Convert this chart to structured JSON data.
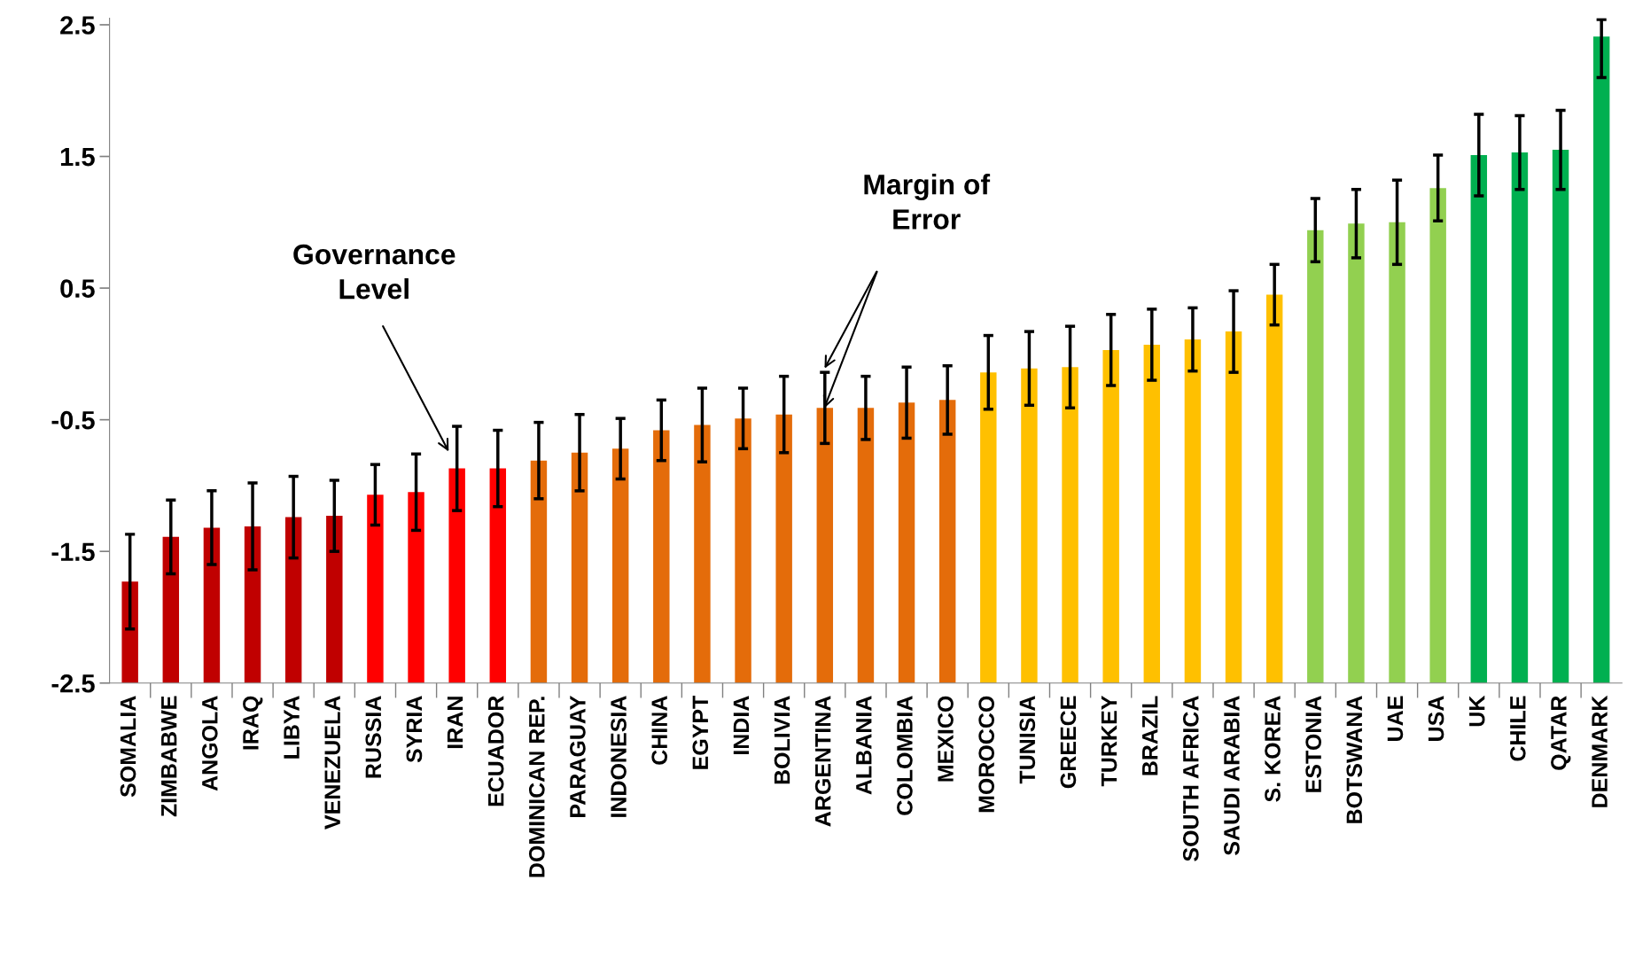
{
  "chart_data": {
    "type": "bar",
    "categories": [
      "SOMALIA",
      "ZIMBABWE",
      "ANGOLA",
      "IRAQ",
      "LIBYA",
      "VENEZUELA",
      "RUSSIA",
      "SYRIA",
      "IRAN",
      "ECUADOR",
      "DOMINICAN REP.",
      "PARAGUAY",
      "INDONESIA",
      "CHINA",
      "EGYPT",
      "INDIA",
      "BOLIVIA",
      "ARGENTINA",
      "ALBANIA",
      "COLOMBIA",
      "MEXICO",
      "MOROCCO",
      "TUNISIA",
      "GREECE",
      "TURKEY",
      "BRAZIL",
      "SOUTH AFRICA",
      "SAUDI ARABIA",
      "S. KOREA",
      "ESTONIA",
      "BOTSWANA",
      "UAE",
      "USA",
      "UK",
      "CHILE",
      "QATAR",
      "DENMARK"
    ],
    "base": [
      -2.5,
      -2.5,
      -2.5,
      -2.5,
      -2.5,
      -2.5,
      -2.5,
      -2.5,
      -2.5,
      -2.5,
      -2.5,
      -2.5,
      -2.5,
      -2.5,
      -2.5,
      -2.5,
      -2.5,
      -2.5,
      -2.5,
      -2.5,
      -2.5,
      -2.5,
      -2.5,
      -2.5,
      -2.5,
      -2.5,
      -2.5,
      -2.5,
      -2.5,
      -2.5,
      -2.5,
      -2.5,
      -2.5,
      -2.5,
      -2.5,
      -2.5,
      -2.5
    ],
    "values": [
      0.77,
      1.11,
      1.18,
      1.19,
      1.26,
      1.27,
      1.43,
      1.45,
      1.63,
      1.63,
      1.69,
      1.75,
      1.78,
      1.92,
      1.96,
      2.01,
      2.04,
      2.09,
      2.09,
      2.13,
      2.15,
      2.36,
      2.39,
      2.4,
      2.53,
      2.57,
      2.61,
      2.67,
      2.95,
      3.44,
      3.49,
      3.5,
      3.76,
      4.01,
      4.03,
      4.05,
      4.91
    ],
    "errors": [
      0.36,
      0.28,
      0.28,
      0.33,
      0.31,
      0.27,
      0.23,
      0.29,
      0.32,
      0.29,
      0.29,
      0.29,
      0.23,
      0.23,
      0.28,
      0.23,
      0.29,
      0.27,
      0.24,
      0.27,
      0.26,
      0.28,
      0.28,
      0.31,
      0.27,
      0.27,
      0.24,
      0.31,
      0.23,
      0.24,
      0.26,
      0.32,
      0.25,
      0.31,
      0.28,
      0.3,
      [
        2.1,
        2.54
      ]
    ],
    "colors": [
      "#c00000",
      "#c00000",
      "#c00000",
      "#c00000",
      "#c00000",
      "#c00000",
      "#ff0000",
      "#ff0000",
      "#ff0000",
      "#ff0000",
      "#e46c0a",
      "#e46c0a",
      "#e46c0a",
      "#e46c0a",
      "#e46c0a",
      "#e46c0a",
      "#e46c0a",
      "#e46c0a",
      "#e46c0a",
      "#e46c0a",
      "#e46c0a",
      "#ffc000",
      "#ffc000",
      "#ffc000",
      "#ffc000",
      "#ffc000",
      "#ffc000",
      "#ffc000",
      "#ffc000",
      "#92d050",
      "#92d050",
      "#92d050",
      "#92d050",
      "#00b050",
      "#00b050",
      "#00b050",
      "#00b050"
    ],
    "ylim": [
      -2.5,
      2.55
    ],
    "yticks": [
      -2.5,
      -1.5,
      -0.5,
      0.5,
      1.5,
      2.5
    ],
    "grid": false,
    "legend": false,
    "annotations": [
      "Governance\nLevel",
      "Margin of\nError"
    ]
  }
}
